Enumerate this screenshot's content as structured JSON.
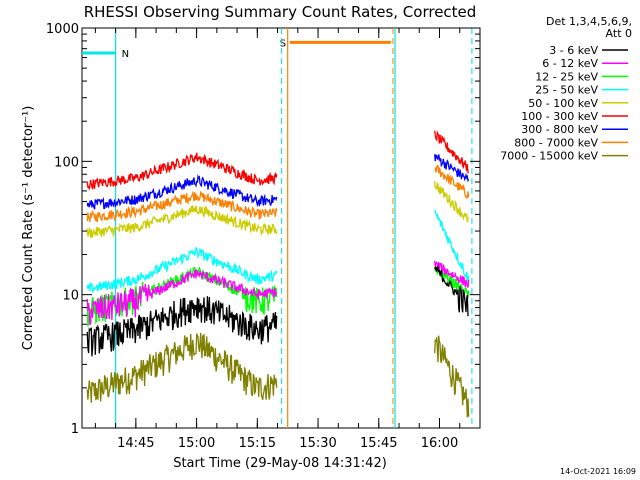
{
  "chart_data": {
    "type": "line",
    "title": "RHESSI Observing Summary Count Rates, Corrected",
    "xlabel": "Start Time (29-May-08 14:31:42)",
    "ylabel": "Corrected Count Rate (s⁻¹ detector⁻¹)",
    "y_scale": "log",
    "ylim": [
      1,
      1000
    ],
    "xlim": [
      "14:31:42",
      "16:10:00"
    ],
    "y_tick_labels": [
      "1",
      "10",
      "100",
      "1000"
    ],
    "x_tick_labels": [
      "14:45",
      "15:00",
      "15:15",
      "15:30",
      "15:45",
      "16:00"
    ],
    "detector_label": "Det 1,3,4,5,6,9,",
    "attenuator_label": "Att 0",
    "footer_date": "14-Oct-2021 16:09",
    "flags": [
      {
        "label": "N",
        "color": "#00e6e6",
        "start": "14:31:42",
        "end": "14:40:00",
        "level": 650
      },
      {
        "label": "S",
        "color": "#ff8000",
        "start": "15:23:00",
        "end": "15:48:00",
        "level": 780
      }
    ],
    "night_intervals": [
      [
        "14:40:00",
        "15:21:00"
      ],
      [
        "15:49:00",
        "16:08:00"
      ]
    ],
    "saa_interval": [
      "15:22:30",
      "15:48:30"
    ],
    "series": [
      {
        "name": "3 - 6 keV",
        "color": "#000000",
        "seg1": [
          [
            14.55,
            4.5
          ],
          [
            14.75,
            5.5
          ],
          [
            15.0,
            8.5
          ],
          [
            15.25,
            5.5
          ],
          [
            15.33,
            6.0
          ]
        ],
        "seg2": [
          [
            15.98,
            16
          ],
          [
            16.12,
            8
          ]
        ]
      },
      {
        "name": "6 - 12 keV",
        "color": "#ff00ff",
        "seg1": [
          [
            14.55,
            7.5
          ],
          [
            14.75,
            9
          ],
          [
            15.0,
            14.5
          ],
          [
            15.25,
            10
          ],
          [
            15.33,
            10.5
          ]
        ],
        "seg2": [
          [
            15.98,
            17
          ],
          [
            16.12,
            12
          ]
        ]
      },
      {
        "name": "12 - 25 keV",
        "color": "#00ff00",
        "seg1": [
          [
            14.55,
            7.5
          ],
          [
            14.75,
            9.5
          ],
          [
            15.0,
            15
          ],
          [
            15.25,
            9
          ],
          [
            15.33,
            9.5
          ]
        ],
        "seg2": [
          [
            15.98,
            16
          ],
          [
            16.12,
            10
          ]
        ]
      },
      {
        "name": "25 - 50 keV",
        "color": "#00ffff",
        "seg1": [
          [
            14.55,
            11
          ],
          [
            14.75,
            13
          ],
          [
            15.0,
            21
          ],
          [
            15.25,
            13
          ],
          [
            15.33,
            14
          ]
        ],
        "seg2": [
          [
            15.98,
            42
          ],
          [
            16.12,
            13
          ]
        ]
      },
      {
        "name": "50 - 100 keV",
        "color": "#cccc00",
        "seg1": [
          [
            14.55,
            29
          ],
          [
            14.75,
            32
          ],
          [
            15.0,
            44
          ],
          [
            15.25,
            31
          ],
          [
            15.33,
            31
          ]
        ],
        "seg2": [
          [
            15.98,
            68
          ],
          [
            16.12,
            36
          ]
        ]
      },
      {
        "name": "100 - 300 keV",
        "color": "#ff0000",
        "seg1": [
          [
            14.55,
            67
          ],
          [
            14.75,
            75
          ],
          [
            15.0,
            108
          ],
          [
            15.25,
            72
          ],
          [
            15.33,
            75
          ]
        ],
        "seg2": [
          [
            15.98,
            160
          ],
          [
            16.12,
            88
          ]
        ]
      },
      {
        "name": "300 - 800 keV",
        "color": "#0000ff",
        "seg1": [
          [
            14.55,
            47
          ],
          [
            14.75,
            52
          ],
          [
            15.0,
            72
          ],
          [
            15.25,
            50
          ],
          [
            15.33,
            52
          ]
        ],
        "seg2": [
          [
            15.98,
            110
          ],
          [
            16.12,
            72
          ]
        ]
      },
      {
        "name": "800 - 7000 keV",
        "color": "#ff8000",
        "seg1": [
          [
            14.55,
            38
          ],
          [
            14.75,
            42
          ],
          [
            15.0,
            56
          ],
          [
            15.25,
            40
          ],
          [
            15.33,
            41
          ]
        ],
        "seg2": [
          [
            15.98,
            90
          ],
          [
            16.12,
            56
          ]
        ]
      },
      {
        "name": "7000 - 15000 keV",
        "color": "#808000",
        "seg1": [
          [
            14.55,
            1.8
          ],
          [
            14.75,
            2.5
          ],
          [
            15.0,
            4.5
          ],
          [
            15.25,
            2.0
          ],
          [
            15.33,
            2.2
          ]
        ],
        "seg2": [
          [
            15.98,
            4.5
          ],
          [
            16.12,
            1.5
          ]
        ]
      }
    ]
  }
}
